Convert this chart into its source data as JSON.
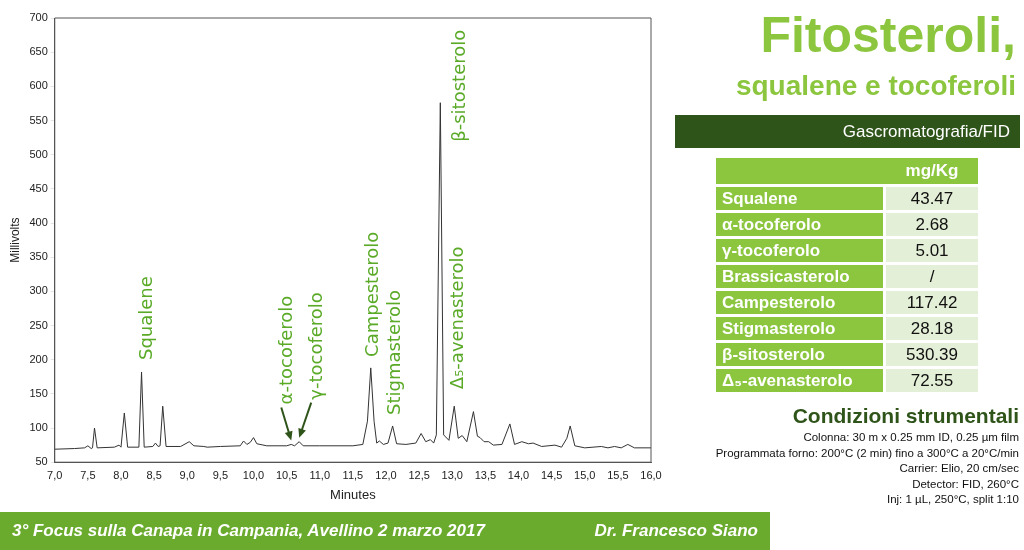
{
  "chart_data": [
    {
      "type": "line",
      "xlabel": "Minutes",
      "ylabel": "Millivolts",
      "xlim": [
        7,
        16
      ],
      "xticks": [
        {
          "value": 7,
          "label": "7,0"
        },
        {
          "value": 7.5,
          "label": "7,5"
        },
        {
          "value": 8,
          "label": "8,0"
        },
        {
          "value": 8.5,
          "label": "8,5"
        },
        {
          "value": 9,
          "label": "9,0"
        },
        {
          "value": 9.5,
          "label": "9,5"
        },
        {
          "value": 10,
          "label": "10,0"
        },
        {
          "value": 10.5,
          "label": "10,5"
        },
        {
          "value": 11,
          "label": "11,0"
        },
        {
          "value": 11.5,
          "label": "11,5"
        },
        {
          "value": 12,
          "label": "12,0"
        },
        {
          "value": 12.5,
          "label": "12,5"
        },
        {
          "value": 13,
          "label": "13,0"
        },
        {
          "value": 13.5,
          "label": "13,5"
        },
        {
          "value": 14,
          "label": "14,0"
        },
        {
          "value": 14.5,
          "label": "14,5"
        },
        {
          "value": 15,
          "label": "15,0"
        },
        {
          "value": 15.5,
          "label": "15,5"
        },
        {
          "value": 16,
          "label": "16,0"
        }
      ],
      "ylim": [
        50,
        700
      ],
      "yticks": [
        50,
        100,
        150,
        200,
        250,
        300,
        350,
        400,
        450,
        500,
        550,
        600,
        650,
        700
      ],
      "grid": false,
      "legend": false,
      "marker": "none",
      "line_style": "solid",
      "series": [
        {
          "color": "#333333",
          "x": [
            7.0,
            7.3,
            7.45,
            7.5,
            7.55,
            7.57,
            7.6,
            7.64,
            7.9,
            7.97,
            8.0,
            8.05,
            8.1,
            8.27,
            8.31,
            8.35,
            8.48,
            8.52,
            8.56,
            8.59,
            8.63,
            8.68,
            8.9,
            9.03,
            9.1,
            9.25,
            9.3,
            9.5,
            9.8,
            9.85,
            9.9,
            9.95,
            10.0,
            10.05,
            10.2,
            10.5,
            10.57,
            10.62,
            10.69,
            10.75,
            11.0,
            11.5,
            11.65,
            11.72,
            11.77,
            11.82,
            11.86,
            11.9,
            11.96,
            12.03,
            12.1,
            12.16,
            12.3,
            12.45,
            12.53,
            12.6,
            12.67,
            12.72,
            12.76,
            12.82,
            12.87,
            12.95,
            13.03,
            13.09,
            13.15,
            13.22,
            13.32,
            13.38,
            13.42,
            13.48,
            13.55,
            13.62,
            13.75,
            13.87,
            13.94,
            14.05,
            14.15,
            14.22,
            14.35,
            14.55,
            14.65,
            14.73,
            14.78,
            14.85,
            15.0,
            15.25,
            15.35,
            15.45,
            15.55,
            15.65,
            15.75,
            16.0
          ],
          "values": [
            69,
            70,
            71,
            74,
            70,
            71,
            100,
            71,
            72,
            75,
            72,
            122,
            72,
            72,
            182,
            72,
            73,
            78,
            73,
            74,
            132,
            73,
            73,
            80,
            74,
            73,
            72,
            73,
            74,
            81,
            76,
            79,
            86,
            77,
            74,
            74,
            76,
            74,
            80,
            74,
            74,
            74,
            76,
            110,
            188,
            110,
            78,
            81,
            76,
            78,
            103,
            77,
            76,
            78,
            92,
            80,
            83,
            78,
            90,
            576,
            90,
            82,
            132,
            85,
            89,
            80,
            124,
            88,
            86,
            80,
            80,
            75,
            76,
            106,
            76,
            80,
            77,
            78,
            73,
            75,
            72,
            85,
            103,
            74,
            71,
            73,
            71,
            73,
            71,
            76,
            71,
            71
          ]
        }
      ],
      "annotations": [
        {
          "text": "Squalene",
          "x": 8.31,
          "y": 182
        },
        {
          "text": "α-tocoferolo",
          "x": 10.57,
          "y": 76
        },
        {
          "text": "γ-tocoferolo",
          "x": 10.69,
          "y": 80
        },
        {
          "text": "Campesterolo",
          "x": 11.77,
          "y": 188
        },
        {
          "text": "Stigmasterolo",
          "x": 12.1,
          "y": 103
        },
        {
          "text": "β-sitosterolo",
          "x": 12.82,
          "y": 576
        },
        {
          "text": "Δ₅-avenasterolo",
          "x": 13.03,
          "y": 132
        },
        "3° Focus sulla Canapa in Campania, Avellino 2 marzo 2017",
        "Dr. Francesco Siano"
      ]
    },
    {
      "type": "other",
      "title": "Fitosteroli,",
      "subtitle": "squalene e tocoferoli",
      "ylabel": "Gascromatografia/FID",
      "xlabel": "mg/Kg",
      "categories": [
        "Squalene",
        "α-tocoferolo",
        "γ-tocoferolo",
        "Brassicasterolo",
        "Campesterolo",
        "Stigmasterolo",
        "β-sitosterolo",
        "Δ₅-avenasterolo"
      ],
      "value_labels": [
        "43.47",
        "2.68",
        "5.01",
        "/",
        "117.42",
        "28.18",
        "530.39",
        "72.55"
      ],
      "annotations": [
        "Condizioni strumentali",
        "Colonna: 30 m x 0.25 mm ID, 0.25 µm film",
        "Programmata forno: 200°C (2 min) fino a 300°C a 20°C/min",
        "Carrier: Elio, 20 cm/sec",
        "Detector: FID, 260°C",
        "Inj: 1 µL, 250°C, split 1:10"
      ]
    }
  ]
}
